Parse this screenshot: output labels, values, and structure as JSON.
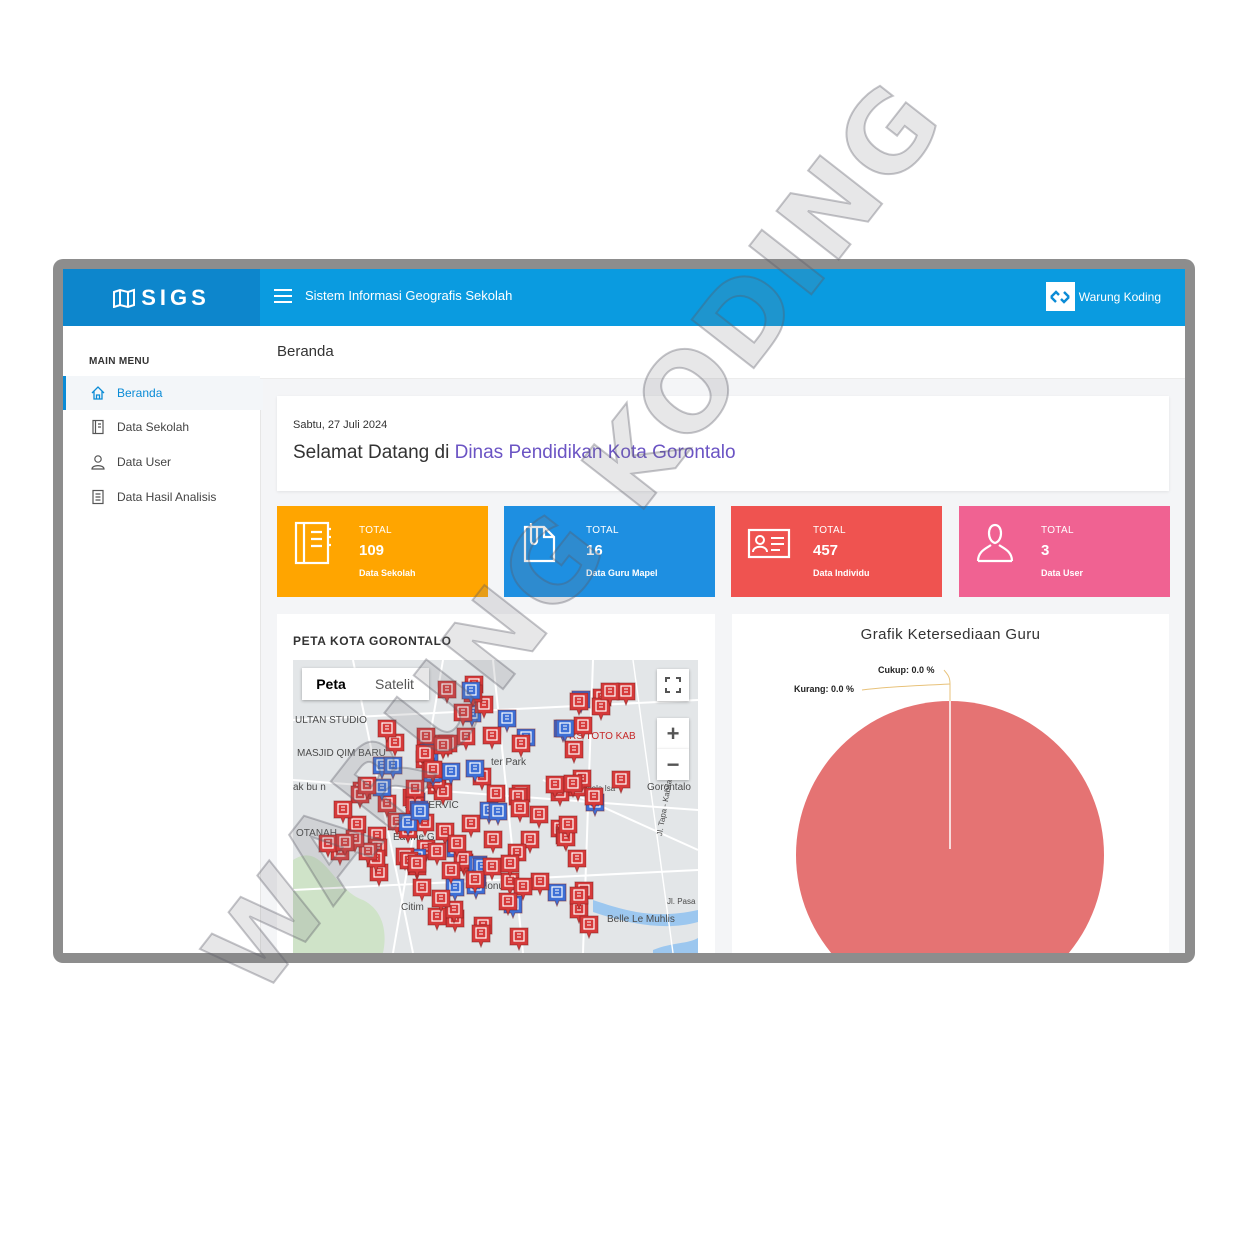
{
  "brand": {
    "logo_text": "SIGS",
    "logo_icon": "map-icon"
  },
  "header": {
    "title": "Sistem Informasi Geografis Sekolah",
    "menu_icon": "hamburger-icon",
    "partner_name": "Warung Koding"
  },
  "sidebar": {
    "heading": "MAIN MENU",
    "items": [
      {
        "label": "Beranda",
        "icon": "home-icon",
        "active": true
      },
      {
        "label": "Data Sekolah",
        "icon": "book-icon",
        "active": false
      },
      {
        "label": "Data User",
        "icon": "user-icon",
        "active": false
      },
      {
        "label": "Data Hasil Analisis",
        "icon": "document-icon",
        "active": false
      }
    ]
  },
  "breadcrumb": {
    "current": "Beranda"
  },
  "welcome": {
    "date": "Sabtu, 27 Juli 2024",
    "greeting": "Selamat Datang di",
    "organization": "Dinas Pendidikan Kota Gorontalo"
  },
  "stats": [
    {
      "label": "TOTAL",
      "value": "109",
      "description": "Data Sekolah",
      "color": "#ffa500",
      "icon": "notebook-icon"
    },
    {
      "label": "TOTAL",
      "value": "16",
      "description": "Data Guru Mapel",
      "color": "#1e8fe1",
      "icon": "file-icon"
    },
    {
      "label": "TOTAL",
      "value": "457",
      "description": "Data Individu",
      "color": "#ef5350",
      "icon": "id-card-icon"
    },
    {
      "label": "TOTAL",
      "value": "3",
      "description": "Data User",
      "color": "#f06292",
      "icon": "user-icon"
    }
  ],
  "map_panel": {
    "title": "PETA KOTA GORONTALO",
    "tabs": [
      "Peta",
      "Satelit"
    ],
    "zoom_in": "+",
    "zoom_out": "−",
    "place_labels": [
      "ULTAN STUDIO",
      "MASJID QIM BARU",
      "ak bu n",
      "OTANAH",
      "AH SERVIC",
      "Eatime G",
      "RS TOTO KAB",
      "ter Park",
      "J. Brigjen Piola Isa",
      "Gorontalo",
      "Monum",
      "Citim",
      "Belle Le Muhlis",
      "Jl. Tapa - Kabila",
      "Jl. Pasa"
    ]
  },
  "chart_data": {
    "type": "pie",
    "title": "Grafik Ketersediaan Guru",
    "slices": [
      {
        "label": "Cukup",
        "value": 0.0,
        "data_label": "Cukup: 0.0 %"
      },
      {
        "label": "Kurang",
        "value": 0.0,
        "data_label": "Kurang: 0.0 %"
      },
      {
        "label": "",
        "value": 100.0,
        "color": "#e57373"
      }
    ]
  },
  "watermark": {
    "text": "WARUNG KODING"
  }
}
